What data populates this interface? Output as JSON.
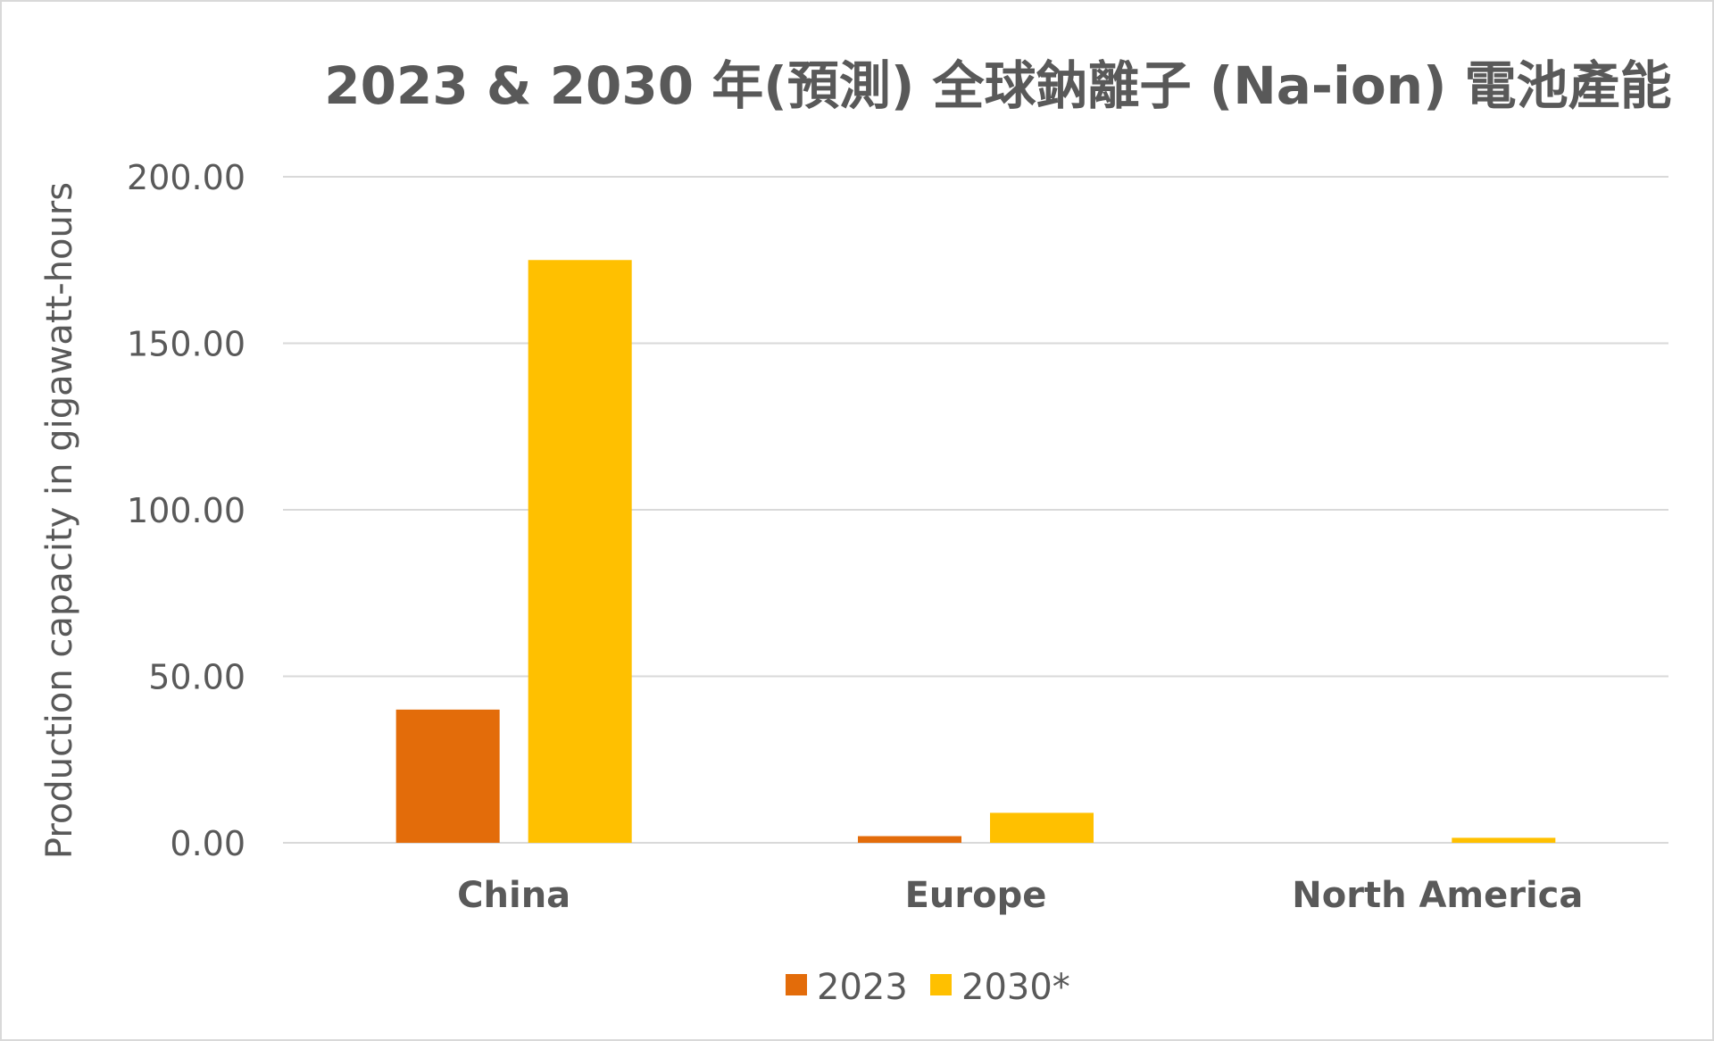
{
  "chart_data": {
    "type": "bar",
    "title": "2023 & 2030 年(預測) 全球鈉離子 (Na-ion) 電池產能",
    "xlabel": "",
    "ylabel": "Production capacity in gigawatt-hours",
    "categories": [
      "China",
      "Europe",
      "North America"
    ],
    "series": [
      {
        "name": "2023",
        "color": "#e36c0a",
        "values": [
          40,
          2,
          0
        ]
      },
      {
        "name": "2030*",
        "color": "#ffc000",
        "values": [
          175,
          9,
          1.5
        ]
      }
    ],
    "ylim": [
      0,
      200
    ],
    "yticks": [
      "0.00",
      "50.00",
      "100.00",
      "150.00",
      "200.00"
    ],
    "ytick_values": [
      0,
      50,
      100,
      150,
      200
    ],
    "grid": true,
    "gridline_color": "#d9d9d9",
    "text_color": "#595959",
    "legend_position": "bottom"
  }
}
